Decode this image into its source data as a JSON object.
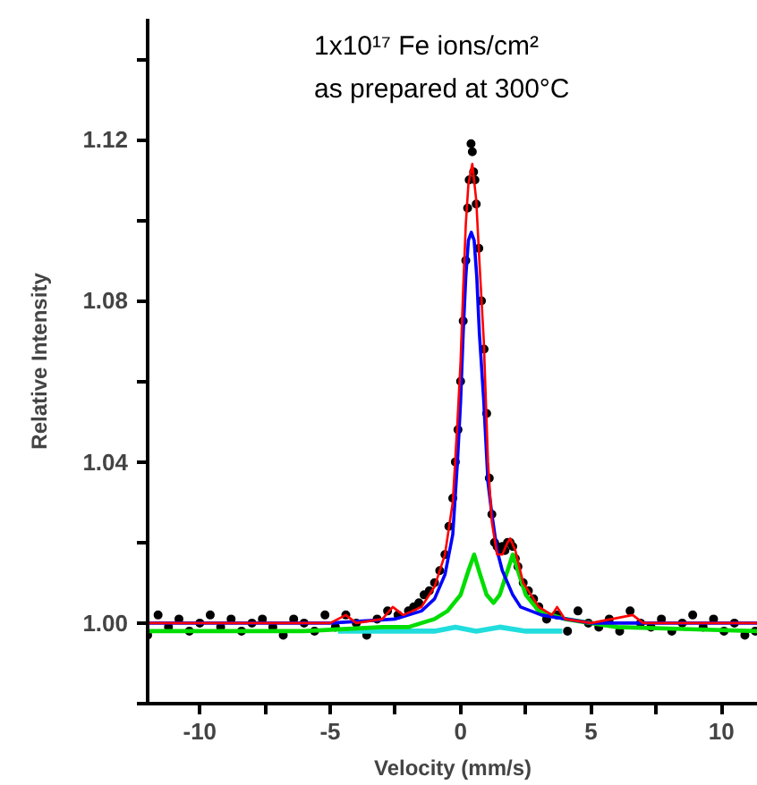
{
  "chart_data": {
    "type": "line",
    "xlabel": "Velocity (mm/s)",
    "ylabel": "Relative Intensity",
    "annotations": [
      "1x10¹⁷ Fe ions/cm²",
      "as prepared at 300°C"
    ],
    "xlim": [
      -12,
      11.4
    ],
    "ylim": [
      0.98,
      1.15
    ],
    "xticks": [
      -10,
      {
        "value": -7.5,
        "label": null
      },
      -5,
      {
        "value": -2.5,
        "label": null
      },
      0,
      {
        "value": 2.5,
        "label": null
      },
      5,
      {
        "value": 7.5,
        "label": null
      },
      10
    ],
    "yticks": [
      {
        "value": 0.98,
        "label": null
      },
      {
        "value": 1.0,
        "label": "1.00"
      },
      {
        "value": 1.02,
        "label": null
      },
      1.04,
      {
        "value": 1.06,
        "label": null
      },
      1.08,
      {
        "value": 1.1,
        "label": null
      },
      1.12,
      {
        "value": 1.14,
        "label": null
      }
    ],
    "grid": false,
    "line_style": "solid",
    "series": [
      {
        "type": "scatter",
        "marker": "circle",
        "color": "#000000",
        "x": [
          -12,
          -11.6,
          -11.2,
          -10.8,
          -10.4,
          -10,
          -9.6,
          -9.2,
          -8.8,
          -8.4,
          -8,
          -7.6,
          -7.2,
          -6.8,
          -6.4,
          -6,
          -5.6,
          -5.2,
          -4.8,
          -4.4,
          -4,
          -3.6,
          -3.2,
          -2.8,
          -2.4,
          -2,
          -1.8,
          -1.6,
          -1.4,
          -1.2,
          -1.0,
          -0.8,
          -0.6,
          -0.45,
          -0.3,
          -0.2,
          -0.1,
          0,
          0.1,
          0.2,
          0.27,
          0.33,
          0.4,
          0.45,
          0.5,
          0.55,
          0.6,
          0.7,
          0.8,
          0.9,
          1.0,
          1.1,
          1.2,
          1.3,
          1.4,
          1.5,
          1.6,
          1.7,
          1.8,
          1.9,
          2.0,
          2.1,
          2.2,
          2.4,
          2.6,
          2.8,
          3.0,
          3.3,
          3.7,
          4.1,
          4.5,
          4.9,
          5.3,
          5.7,
          6.1,
          6.5,
          6.9,
          7.3,
          7.7,
          8.1,
          8.5,
          8.9,
          9.3,
          9.7,
          10.1,
          10.5,
          10.9,
          11.3
        ],
        "values": [
          0.997,
          1.002,
          0.999,
          1.001,
          0.998,
          1.0,
          1.002,
          0.999,
          1.001,
          0.998,
          1.0,
          1.001,
          0.999,
          0.997,
          1.001,
          1.0,
          0.998,
          1.002,
          0.999,
          1.002,
          1.0,
          0.997,
          1.001,
          1.003,
          1.002,
          1.003,
          1.004,
          1.005,
          1.007,
          1.008,
          1.01,
          1.013,
          1.017,
          1.024,
          1.031,
          1.04,
          1.048,
          1.06,
          1.075,
          1.09,
          1.103,
          1.11,
          1.119,
          1.117,
          1.112,
          1.11,
          1.104,
          1.093,
          1.08,
          1.068,
          1.052,
          1.036,
          1.027,
          1.02,
          1.019,
          1.018,
          1.019,
          1.018,
          1.02,
          1.02,
          1.019,
          1.016,
          1.014,
          1.01,
          1.008,
          1.006,
          1.004,
          1.001,
          1.002,
          0.998,
          1.003,
          1.0,
          0.999,
          1.001,
          0.998,
          1.003,
          1.0,
          0.999,
          1.001,
          0.998,
          1.0,
          1.002,
          0.999,
          1.001,
          0.998,
          1.0,
          0.997,
          0.998
        ]
      },
      {
        "color": "#22dddd",
        "x": [
          -4.7,
          -1,
          -0.2,
          0.6,
          1.5,
          2.5,
          3.9
        ],
        "values": [
          0.998,
          0.998,
          0.999,
          0.998,
          0.999,
          0.998,
          0.998
        ]
      },
      {
        "color": "#00dd00",
        "x": [
          -12,
          -6,
          -3,
          -2,
          -1,
          -0.5,
          0,
          0.3,
          0.52,
          0.75,
          1.0,
          1.26,
          1.5,
          1.75,
          2.0,
          2.25,
          2.5,
          3,
          4,
          6,
          11.4
        ],
        "values": [
          0.998,
          0.998,
          0.999,
          0.999,
          1.001,
          1.003,
          1.007,
          1.013,
          1.017,
          1.012,
          1.007,
          1.005,
          1.007,
          1.012,
          1.017,
          1.012,
          1.007,
          1.003,
          1.001,
          0.999,
          0.998
        ]
      },
      {
        "color": "#0000ff",
        "x": [
          -12,
          -5,
          -2.5,
          -1.5,
          -1,
          -0.6,
          -0.3,
          -0.12,
          0,
          0.1,
          0.2,
          0.3,
          0.41,
          0.52,
          0.62,
          0.72,
          0.89,
          1.05,
          1.2,
          1.4,
          1.6,
          2,
          2.3,
          3.1,
          5,
          11.4
        ],
        "values": [
          1.0,
          1.0,
          1.001,
          1.003,
          1.006,
          1.012,
          1.022,
          1.04,
          1.055,
          1.072,
          1.086,
          1.095,
          1.097,
          1.095,
          1.086,
          1.072,
          1.055,
          1.035,
          1.027,
          1.018,
          1.013,
          1.007,
          1.004,
          1.002,
          1.0,
          1.0
        ]
      },
      {
        "color": "#ff0000",
        "x": [
          -12,
          -5,
          -4.4,
          -4,
          -3,
          -2.6,
          -2.2,
          -1.5,
          -1,
          -0.6,
          -0.3,
          -0.12,
          0,
          0.1,
          0.2,
          0.3,
          0.45,
          0.6,
          0.72,
          0.89,
          1.05,
          1.2,
          1.4,
          1.6,
          1.8,
          1.9,
          2.1,
          2.4,
          3,
          3.5,
          3.7,
          4,
          5,
          6.6,
          7,
          11.4
        ],
        "values": [
          1.0,
          1.0,
          1.002,
          1.0,
          1.001,
          1.004,
          1.002,
          1.004,
          1.009,
          1.017,
          1.03,
          1.05,
          1.065,
          1.083,
          1.099,
          1.109,
          1.114,
          1.105,
          1.09,
          1.07,
          1.04,
          1.025,
          1.017,
          1.017,
          1.02,
          1.021,
          1.018,
          1.01,
          1.004,
          1.002,
          1.004,
          1.001,
          1.0,
          1.002,
          1.0,
          1.0
        ]
      }
    ]
  }
}
